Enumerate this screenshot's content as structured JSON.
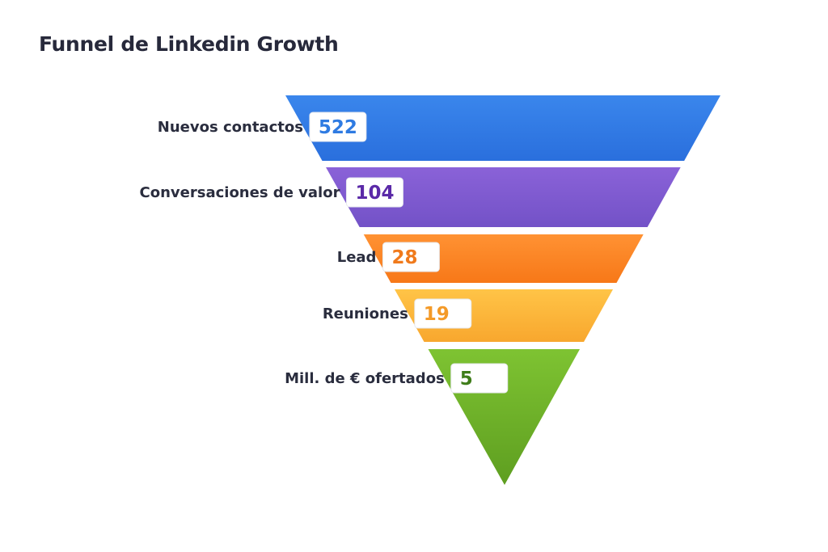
{
  "chart_data": {
    "type": "funnel",
    "title": "Funnel de Linkedin Growth",
    "categories": [
      "Nuevos contactos",
      "Conversaciones de valor",
      "Lead",
      "Reuniones",
      "Mill. de € ofertados"
    ],
    "values": [
      522,
      104,
      28,
      19,
      5
    ],
    "colors": [
      [
        "#3a86ec",
        "#2a6fdd"
      ],
      [
        "#8a62d8",
        "#7352c7"
      ],
      [
        "#ff9233",
        "#f77818"
      ],
      [
        "#ffc447",
        "#f8a72e"
      ],
      [
        "#7ec332",
        "#5e9e20"
      ]
    ],
    "value_colors": [
      "#2f7be2",
      "#5b2aa8",
      "#f07a1c",
      "#f49a28",
      "#3f7d1a"
    ],
    "legend": "none",
    "grid": false
  }
}
